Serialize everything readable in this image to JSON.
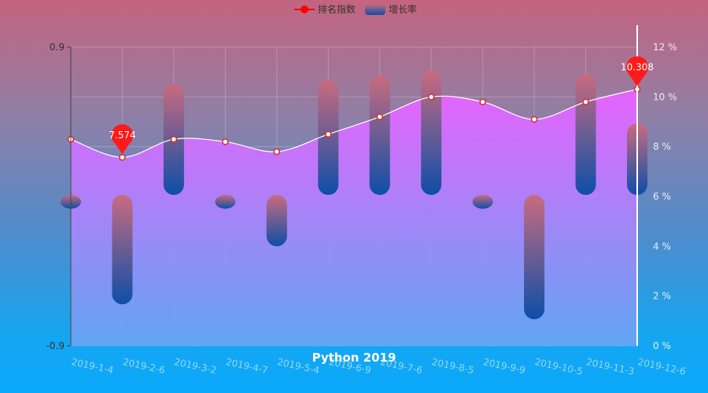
{
  "legend": {
    "series_line": "排名指数",
    "series_bar": "增长率"
  },
  "colors": {
    "line_marker": "#ff0000",
    "area_top": "#e663ff",
    "area_bottom": "#6aa5f3",
    "bar_top": "#c86b7f",
    "bar_bottom": "#0d4ea8"
  },
  "chart_data": {
    "type": "bar+line",
    "title": "Python 2019",
    "categories": [
      "2019-1-4",
      "2019-2-6",
      "2019-3-2",
      "2019-4-7",
      "2019-5-4",
      "2019-6-9",
      "2019-7-6",
      "2019-8-5",
      "2019-9-9",
      "2019-10-5",
      "2019-11-3",
      "2019-12-6"
    ],
    "left_axis": {
      "ticks": [
        "0.9",
        "-0.9"
      ],
      "ylim": [
        -0.9,
        0.9
      ]
    },
    "right_axis": {
      "ticks": [
        "12 %",
        "10 %",
        "8 %",
        "6 %",
        "4 %",
        "2 %",
        "0 %"
      ],
      "ylim": [
        0,
        12
      ]
    },
    "series": [
      {
        "name": "增长率",
        "axis": "left",
        "type": "bar",
        "values": [
          -0.03,
          -0.65,
          0.68,
          -0.03,
          -0.3,
          0.7,
          0.73,
          0.76,
          -0.1,
          -0.74,
          0.74,
          0.44
        ]
      },
      {
        "name": "排名指数",
        "axis": "right",
        "type": "line",
        "area": true,
        "values": [
          8.3,
          7.574,
          8.3,
          8.2,
          7.8,
          8.5,
          9.2,
          10.0,
          9.8,
          9.1,
          9.8,
          10.308
        ]
      }
    ],
    "markers": [
      {
        "index": 1,
        "label": "7.574"
      },
      {
        "index": 11,
        "label": "10.308"
      }
    ],
    "grid": true,
    "legend_position": "top-center"
  }
}
